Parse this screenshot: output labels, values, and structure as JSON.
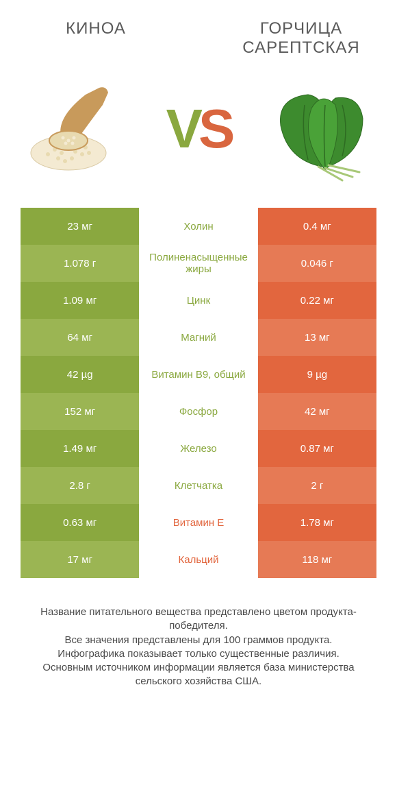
{
  "colors": {
    "left_dark": "#8aa83f",
    "left_light": "#9bb553",
    "right_dark": "#e2663e",
    "right_light": "#e67a55",
    "mid_left_text": "#8aa83f",
    "mid_right_text": "#e2663e",
    "title_text": "#5a5a5a",
    "footer_text": "#4a4a4a"
  },
  "header": {
    "left_title": "КИНОА",
    "right_title": "ГОРЧИЦА САРЕПТСКАЯ"
  },
  "vs_text": "VS",
  "rows": [
    {
      "left": "23 мг",
      "mid": "Холин",
      "right": "0.4 мг",
      "winner": "left"
    },
    {
      "left": "1.078 г",
      "mid": "Полиненасыщенные жиры",
      "right": "0.046 г",
      "winner": "left"
    },
    {
      "left": "1.09 мг",
      "mid": "Цинк",
      "right": "0.22 мг",
      "winner": "left"
    },
    {
      "left": "64 мг",
      "mid": "Магний",
      "right": "13 мг",
      "winner": "left"
    },
    {
      "left": "42 µg",
      "mid": "Витамин B9, общий",
      "right": "9 µg",
      "winner": "left"
    },
    {
      "left": "152 мг",
      "mid": "Фосфор",
      "right": "42 мг",
      "winner": "left"
    },
    {
      "left": "1.49 мг",
      "mid": "Железо",
      "right": "0.87 мг",
      "winner": "left"
    },
    {
      "left": "2.8 г",
      "mid": "Клетчатка",
      "right": "2 г",
      "winner": "left"
    },
    {
      "left": "0.63 мг",
      "mid": "Витамин E",
      "right": "1.78 мг",
      "winner": "right"
    },
    {
      "left": "17 мг",
      "mid": "Кальций",
      "right": "118 мг",
      "winner": "right"
    }
  ],
  "footer_lines": [
    "Название питательного вещества представлено цветом продукта-победителя.",
    "Все значения представлены для 100 граммов продукта.",
    "Инфографика показывает только существенные различия.",
    "Основным источником информации является база министерства сельского хозяйства США."
  ]
}
